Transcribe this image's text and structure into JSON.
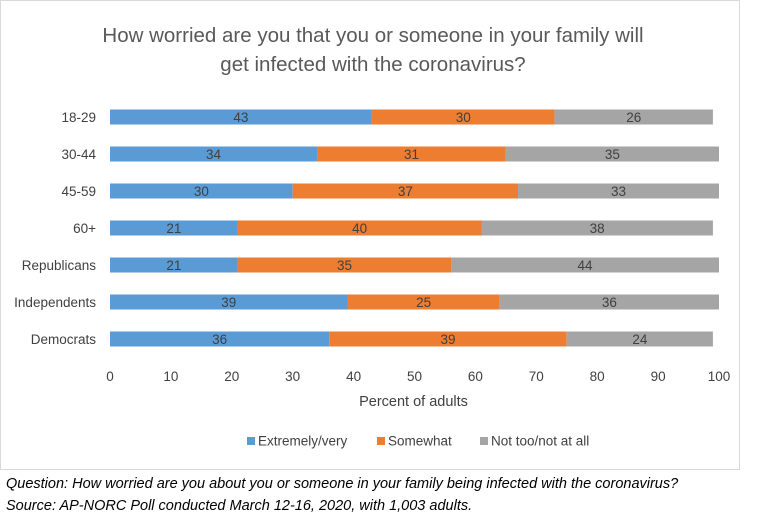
{
  "chart_data": {
    "type": "bar",
    "orientation": "horizontal",
    "stacked": true,
    "title_lines": [
      "How worried are you that you or someone in your family will",
      "get infected with the coronavirus?"
    ],
    "categories": [
      "18-29",
      "30-44",
      "45-59",
      "60+",
      "Republicans",
      "Independents",
      "Democrats"
    ],
    "series": [
      {
        "name": "Extremely/very",
        "color": "#5b9bd5",
        "values": [
          43,
          34,
          30,
          21,
          21,
          39,
          36
        ]
      },
      {
        "name": "Somewhat",
        "color": "#ed7d31",
        "values": [
          30,
          31,
          37,
          40,
          35,
          25,
          39
        ]
      },
      {
        "name": "Not too/not at all",
        "color": "#a5a5a5",
        "values": [
          26,
          35,
          33,
          38,
          44,
          36,
          24
        ]
      }
    ],
    "xlabel": "Percent of adults",
    "xlim": [
      0,
      100
    ],
    "xticks": [
      0,
      10,
      20,
      30,
      40,
      50,
      60,
      70,
      80,
      90,
      100
    ],
    "legend_position": "bottom",
    "grid": false
  },
  "footnotes": {
    "question": "Question: How worried are you about you or someone in your family being infected with the coronavirus?",
    "source": "Source: AP-NORC Poll conducted March 12-16, 2020, with 1,003 adults."
  }
}
